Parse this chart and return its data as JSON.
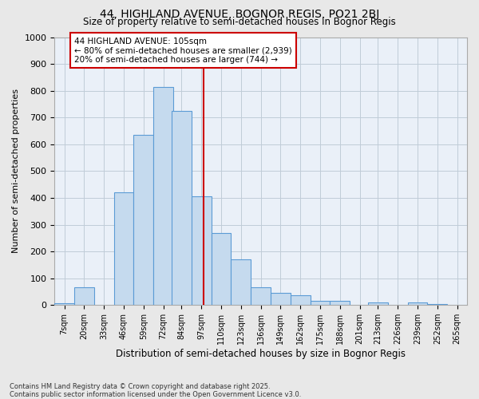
{
  "title1": "44, HIGHLAND AVENUE, BOGNOR REGIS, PO21 2BJ",
  "title2": "Size of property relative to semi-detached houses in Bognor Regis",
  "xlabel": "Distribution of semi-detached houses by size in Bognor Regis",
  "ylabel": "Number of semi-detached properties",
  "categories": [
    "7sqm",
    "20sqm",
    "33sqm",
    "46sqm",
    "59sqm",
    "72sqm",
    "84sqm",
    "97sqm",
    "110sqm",
    "123sqm",
    "136sqm",
    "149sqm",
    "162sqm",
    "175sqm",
    "188sqm",
    "201sqm",
    "213sqm",
    "226sqm",
    "239sqm",
    "252sqm",
    "265sqm"
  ],
  "bin_starts": [
    7,
    20,
    33,
    46,
    59,
    72,
    84,
    97,
    110,
    123,
    136,
    149,
    162,
    175,
    188,
    201,
    213,
    226,
    239,
    252,
    265
  ],
  "bin_width": 13,
  "bar_heights": [
    7,
    65,
    0,
    420,
    635,
    815,
    725,
    405,
    270,
    170,
    65,
    45,
    35,
    15,
    15,
    0,
    10,
    0,
    10,
    5,
    0
  ],
  "bar_color": "#c5daee",
  "bar_edge_color": "#5b9bd5",
  "vline_x": 105,
  "vline_color": "#cc0000",
  "annotation_title": "44 HIGHLAND AVENUE: 105sqm",
  "annotation_line1": "← 80% of semi-detached houses are smaller (2,939)",
  "annotation_line2": "20% of semi-detached houses are larger (744) →",
  "annotation_box_edgecolor": "#cc0000",
  "ylim_max": 1000,
  "yticks": [
    0,
    100,
    200,
    300,
    400,
    500,
    600,
    700,
    800,
    900,
    1000
  ],
  "footnote1": "Contains HM Land Registry data © Crown copyright and database right 2025.",
  "footnote2": "Contains public sector information licensed under the Open Government Licence v3.0.",
  "bg_color": "#e8e8e8",
  "plot_bg_color": "#eaf0f8",
  "grid_color": "#c0ccd8"
}
